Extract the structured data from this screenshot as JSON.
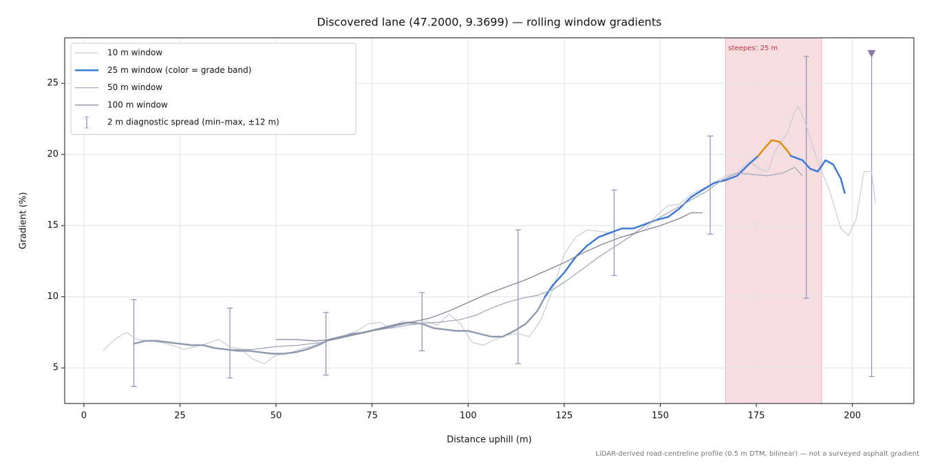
{
  "chart_data": {
    "type": "line",
    "title": "Discovered lane (47.2000, 9.3699) — rolling window gradients",
    "x_label": "Distance uphill (m)",
    "y_label": "Gradient (%)",
    "footnote": "LiDAR-derived road-centreline profile (0.5 m DTM, bilinear) — not a surveyed asphalt gradient",
    "xlim": [
      -5,
      216
    ],
    "ylim": [
      2.5,
      28.2
    ],
    "xticks": [
      0,
      25,
      50,
      75,
      100,
      125,
      150,
      175,
      200
    ],
    "yticks": [
      5,
      10,
      15,
      20,
      25
    ],
    "grid": true,
    "legend": "upper left",
    "series": [
      {
        "name": "10 m window",
        "color": "#c5cad6",
        "linewidth": 1.2,
        "x": [
          5,
          8,
          11,
          14,
          17,
          20,
          23,
          26,
          29,
          32,
          35,
          38,
          41,
          44,
          47,
          50,
          53,
          56,
          59,
          62,
          65,
          68,
          71,
          74,
          77,
          80,
          83,
          86,
          89,
          92,
          95,
          98,
          101,
          104,
          107,
          110,
          113,
          116,
          119,
          122,
          125,
          128,
          131,
          134,
          137,
          140,
          143,
          146,
          149,
          152,
          155,
          158,
          161,
          164,
          167,
          170,
          173,
          176,
          178,
          180,
          183,
          185,
          186,
          188,
          191,
          194,
          197,
          199,
          201,
          203,
          205,
          206
        ],
        "values": [
          6.2,
          7.0,
          7.5,
          7.0,
          6.9,
          6.8,
          6.6,
          6.3,
          6.5,
          6.7,
          7.0,
          6.5,
          6.3,
          5.6,
          5.3,
          5.9,
          6.0,
          6.3,
          6.5,
          6.8,
          7.0,
          7.3,
          7.6,
          8.1,
          8.2,
          7.8,
          8.3,
          8.0,
          8.3,
          8.0,
          8.8,
          8.1,
          6.8,
          6.6,
          7.0,
          7.3,
          7.4,
          7.2,
          8.4,
          10.5,
          13.0,
          14.2,
          14.7,
          14.6,
          14.5,
          14.2,
          14.4,
          14.7,
          15.7,
          16.4,
          16.5,
          17.2,
          17.6,
          18.0,
          18.5,
          18.7,
          19.5,
          19.0,
          18.8,
          20.3,
          21.5,
          23.0,
          23.4,
          22.0,
          19.5,
          17.5,
          14.8,
          14.3,
          15.5,
          18.8,
          18.8,
          16.6
        ]
      },
      {
        "name": "25 m window (color = grade band)",
        "color": "#3a78d8",
        "linewidth": 2.5,
        "bands": [
          {
            "upto": 10,
            "color": "#8e9bb1"
          },
          {
            "upto": 20,
            "color": "#3a78d8"
          },
          {
            "upto": 30,
            "color": "#e08a0e"
          }
        ],
        "x": [
          13,
          16,
          19,
          22,
          25,
          28,
          31,
          34,
          37,
          40,
          43,
          46,
          49,
          52,
          55,
          58,
          61,
          64,
          67,
          70,
          73,
          76,
          79,
          82,
          85,
          88,
          91,
          94,
          97,
          100,
          103,
          106,
          109,
          112,
          115,
          118,
          120,
          122,
          125,
          128,
          131,
          134,
          137,
          140,
          143,
          146,
          149,
          152,
          155,
          158,
          161,
          164,
          167,
          170,
          173,
          175.5,
          177,
          179,
          181,
          183,
          184,
          187,
          189,
          191,
          193,
          195,
          197,
          198
        ],
        "values": [
          6.7,
          6.9,
          6.9,
          6.8,
          6.7,
          6.6,
          6.6,
          6.4,
          6.3,
          6.2,
          6.2,
          6.1,
          6.0,
          6.0,
          6.1,
          6.3,
          6.6,
          7.0,
          7.2,
          7.4,
          7.5,
          7.7,
          7.9,
          8.1,
          8.2,
          8.1,
          7.8,
          7.7,
          7.6,
          7.6,
          7.4,
          7.2,
          7.2,
          7.6,
          8.1,
          9.0,
          10.0,
          10.8,
          11.7,
          12.8,
          13.6,
          14.2,
          14.5,
          14.8,
          14.8,
          15.1,
          15.4,
          15.6,
          16.2,
          17.0,
          17.5,
          18.0,
          18.2,
          18.5,
          19.3,
          19.9,
          20.4,
          21.0,
          20.9,
          20.3,
          19.9,
          19.6,
          19.0,
          18.8,
          19.6,
          19.3,
          18.3,
          17.3
        ]
      },
      {
        "name": "50 m window",
        "color": "#a0a8b8",
        "linewidth": 1.3,
        "x": [
          38,
          44,
          50,
          56,
          62,
          68,
          74,
          80,
          86,
          92,
          98,
          102,
          106,
          110,
          114,
          118,
          122,
          126,
          130,
          134,
          138,
          142,
          146,
          150,
          154,
          158,
          162,
          166,
          170,
          174,
          178,
          182,
          185,
          187
        ],
        "values": [
          6.3,
          6.3,
          6.5,
          6.6,
          6.8,
          7.2,
          7.6,
          7.8,
          8.1,
          8.2,
          8.4,
          8.7,
          9.2,
          9.6,
          9.9,
          10.1,
          10.5,
          11.2,
          12.0,
          12.8,
          13.5,
          14.2,
          15.0,
          15.6,
          16.2,
          16.8,
          17.4,
          18.2,
          18.7,
          18.6,
          18.5,
          18.7,
          19.1,
          18.5
        ]
      },
      {
        "name": "100 m window",
        "color": "#7f8496",
        "linewidth": 1.3,
        "x": [
          50,
          55,
          60,
          65,
          70,
          75,
          80,
          85,
          90,
          95,
          100,
          105,
          110,
          115,
          120,
          125,
          130,
          135,
          140,
          145,
          150,
          155,
          158,
          161
        ],
        "values": [
          7.0,
          7.0,
          6.9,
          7.0,
          7.3,
          7.6,
          7.9,
          8.2,
          8.5,
          9.0,
          9.6,
          10.2,
          10.7,
          11.2,
          11.8,
          12.4,
          13.1,
          13.7,
          14.2,
          14.6,
          15.0,
          15.5,
          15.9,
          15.9
        ]
      }
    ],
    "errorbars": {
      "name": "2 m diagnostic spread (min–max, ±12 m)",
      "color": "#9a90b8",
      "x": [
        13,
        38,
        63,
        88,
        113,
        138,
        163,
        188,
        205
      ],
      "low": [
        3.7,
        4.3,
        4.5,
        6.2,
        5.3,
        11.5,
        14.4,
        9.9,
        4.4
      ],
      "high": [
        9.8,
        9.2,
        8.9,
        10.3,
        14.7,
        17.5,
        21.3,
        26.9,
        27.1
      ]
    },
    "markers": {
      "x": [
        205
      ],
      "y": [
        27.1
      ],
      "color": "#8a7aa8"
    },
    "span": {
      "x": [
        167,
        192
      ],
      "label": "steepest 25 m",
      "color": "#e8b4bb",
      "label_color": "#c0303c"
    }
  }
}
